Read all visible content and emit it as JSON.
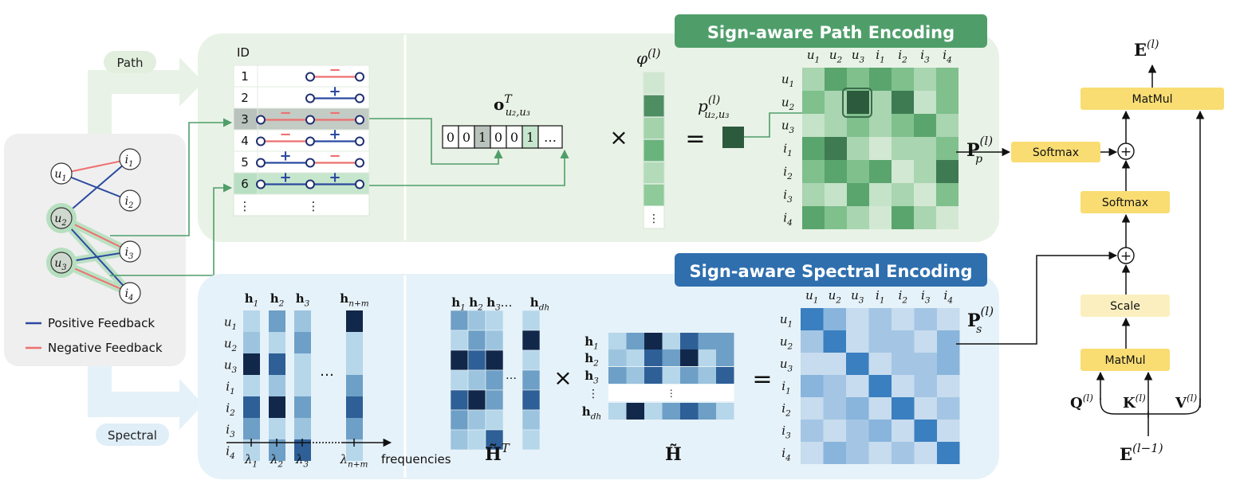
{
  "graph": {
    "users": [
      "u1",
      "u2",
      "u3"
    ],
    "items": [
      "i1",
      "i2",
      "i3",
      "i4"
    ],
    "positive_edges": [
      [
        "u1",
        "i2"
      ],
      [
        "u2",
        "i1"
      ],
      [
        "u2",
        "i4"
      ],
      [
        "u3",
        "i3"
      ]
    ],
    "negative_edges": [
      [
        "u1",
        "i1"
      ],
      [
        "u2",
        "i3"
      ],
      [
        "u3",
        "i4"
      ]
    ],
    "legend": {
      "positive": "Positive Feedback",
      "negative": "Negative Feedback"
    },
    "colors": {
      "positive": "#2b4aa0",
      "negative": "#ef6f6f",
      "highlight_path": "#b6dfbf"
    }
  },
  "branch_labels": {
    "path": "Path",
    "spectral": "Spectral"
  },
  "path_encoding": {
    "title": "Sign-aware Path Encoding",
    "id_header": "ID",
    "rows": [
      {
        "id": "1",
        "signs": [
          "-"
        ]
      },
      {
        "id": "2",
        "signs": [
          "+"
        ]
      },
      {
        "id": "3",
        "signs": [
          "-",
          "-"
        ]
      },
      {
        "id": "4",
        "signs": [
          "-",
          "+"
        ]
      },
      {
        "id": "5",
        "signs": [
          "+",
          "-"
        ]
      },
      {
        "id": "6",
        "signs": [
          "+",
          "+"
        ]
      }
    ],
    "ellipsis": "⋮",
    "highlighted_ids": [
      "3",
      "6"
    ],
    "one_hot_label": "o",
    "one_hot_sup": "T",
    "one_hot_sub": "u₂,u₃",
    "one_hot": [
      "0",
      "0",
      "1",
      "0",
      "0",
      "1",
      "…"
    ],
    "phi_label": "φ",
    "phi_sup": "(l)",
    "times": "×",
    "equals": "=",
    "p_label": "p",
    "p_sup": "(l)",
    "p_sub": "u₂,u₃",
    "matrix_label": "P",
    "matrix_sup": "(l)",
    "matrix_sub": "p",
    "matrix_headers": [
      "u1",
      "u2",
      "u3",
      "i1",
      "i2",
      "i3",
      "i4"
    ]
  },
  "spectral_encoding": {
    "title": "Sign-aware Spectral Encoding",
    "eigvec_headers": [
      "h1",
      "h2",
      "h3",
      "hn+m"
    ],
    "row_labels": [
      "u1",
      "u2",
      "u3",
      "i1",
      "i2",
      "i3",
      "i4"
    ],
    "dots": "…",
    "axis_ticks": [
      "λ1",
      "λ2",
      "λ3",
      "λn+m"
    ],
    "axis_label": "frequencies",
    "htilde_T_headers": [
      "h1",
      "h2",
      "h3",
      "…",
      "hdh"
    ],
    "htilde_T_label": "H̃",
    "htilde_T_sup": "T",
    "htilde_label": "H̃",
    "htilde_row_labels": [
      "h1",
      "h2",
      "h3",
      "⋮",
      "hdh"
    ],
    "times": "×",
    "equals": "=",
    "matrix_label": "P",
    "matrix_sup": "(l)",
    "matrix_sub": "s",
    "matrix_headers": [
      "u1",
      "u2",
      "u3",
      "i1",
      "i2",
      "i3",
      "i4"
    ]
  },
  "attention": {
    "output": "E(l)",
    "matmul_top": "MatMul",
    "softmax_left": "Softmax",
    "softmax_mid": "Softmax",
    "scale": "Scale",
    "matmul_bottom": "MatMul",
    "q": "Q(l)",
    "k": "K(l)",
    "v": "V(l)",
    "input": "E(l−1)",
    "plus": "+"
  }
}
